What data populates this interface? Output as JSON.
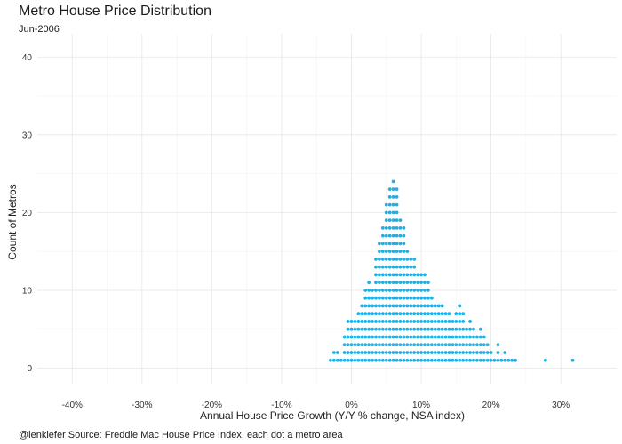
{
  "chart_data": {
    "type": "scatter",
    "style": "dot-plot",
    "title": "Metro House Price Distribution",
    "subtitle": "Jun-2006",
    "xlabel": "Annual House Price Growth (Y/Y % change, NSA index)",
    "ylabel": "Count of Metros",
    "caption": "@lenkiefer Source: Freddie Mac House Price Index, each dot a metro area",
    "xlim": [
      -45,
      38
    ],
    "ylim": [
      -2,
      43
    ],
    "x_ticks": [
      -40,
      -30,
      -20,
      -10,
      0,
      10,
      20,
      30
    ],
    "x_tick_labels": [
      "-40%",
      "-30%",
      "-20%",
      "-10%",
      "0%",
      "10%",
      "20%",
      "30%"
    ],
    "y_ticks": [
      0,
      10,
      20,
      30,
      40
    ],
    "y_tick_labels": [
      "0",
      "10",
      "20",
      "30",
      "40"
    ],
    "grid": true,
    "dot_color": "#1fb1e6",
    "bin_width_pct": 0.5,
    "bins": {
      "start": -3.0,
      "counts": [
        1,
        2,
        2,
        1,
        4,
        6,
        6,
        6,
        7,
        8,
        10,
        11,
        10,
        14,
        16,
        18,
        21,
        23,
        24,
        23,
        19,
        18,
        15,
        14,
        14,
        12,
        12,
        12,
        11,
        9,
        8,
        8,
        8,
        7,
        7,
        6,
        7,
        8,
        7,
        5,
        6,
        5,
        4,
        5,
        4,
        3,
        2,
        1,
        3,
        1,
        2,
        1,
        1,
        1
      ]
    },
    "outliers": [
      {
        "x": 27.8,
        "count": 1
      },
      {
        "x": 31.7,
        "count": 1
      }
    ]
  }
}
